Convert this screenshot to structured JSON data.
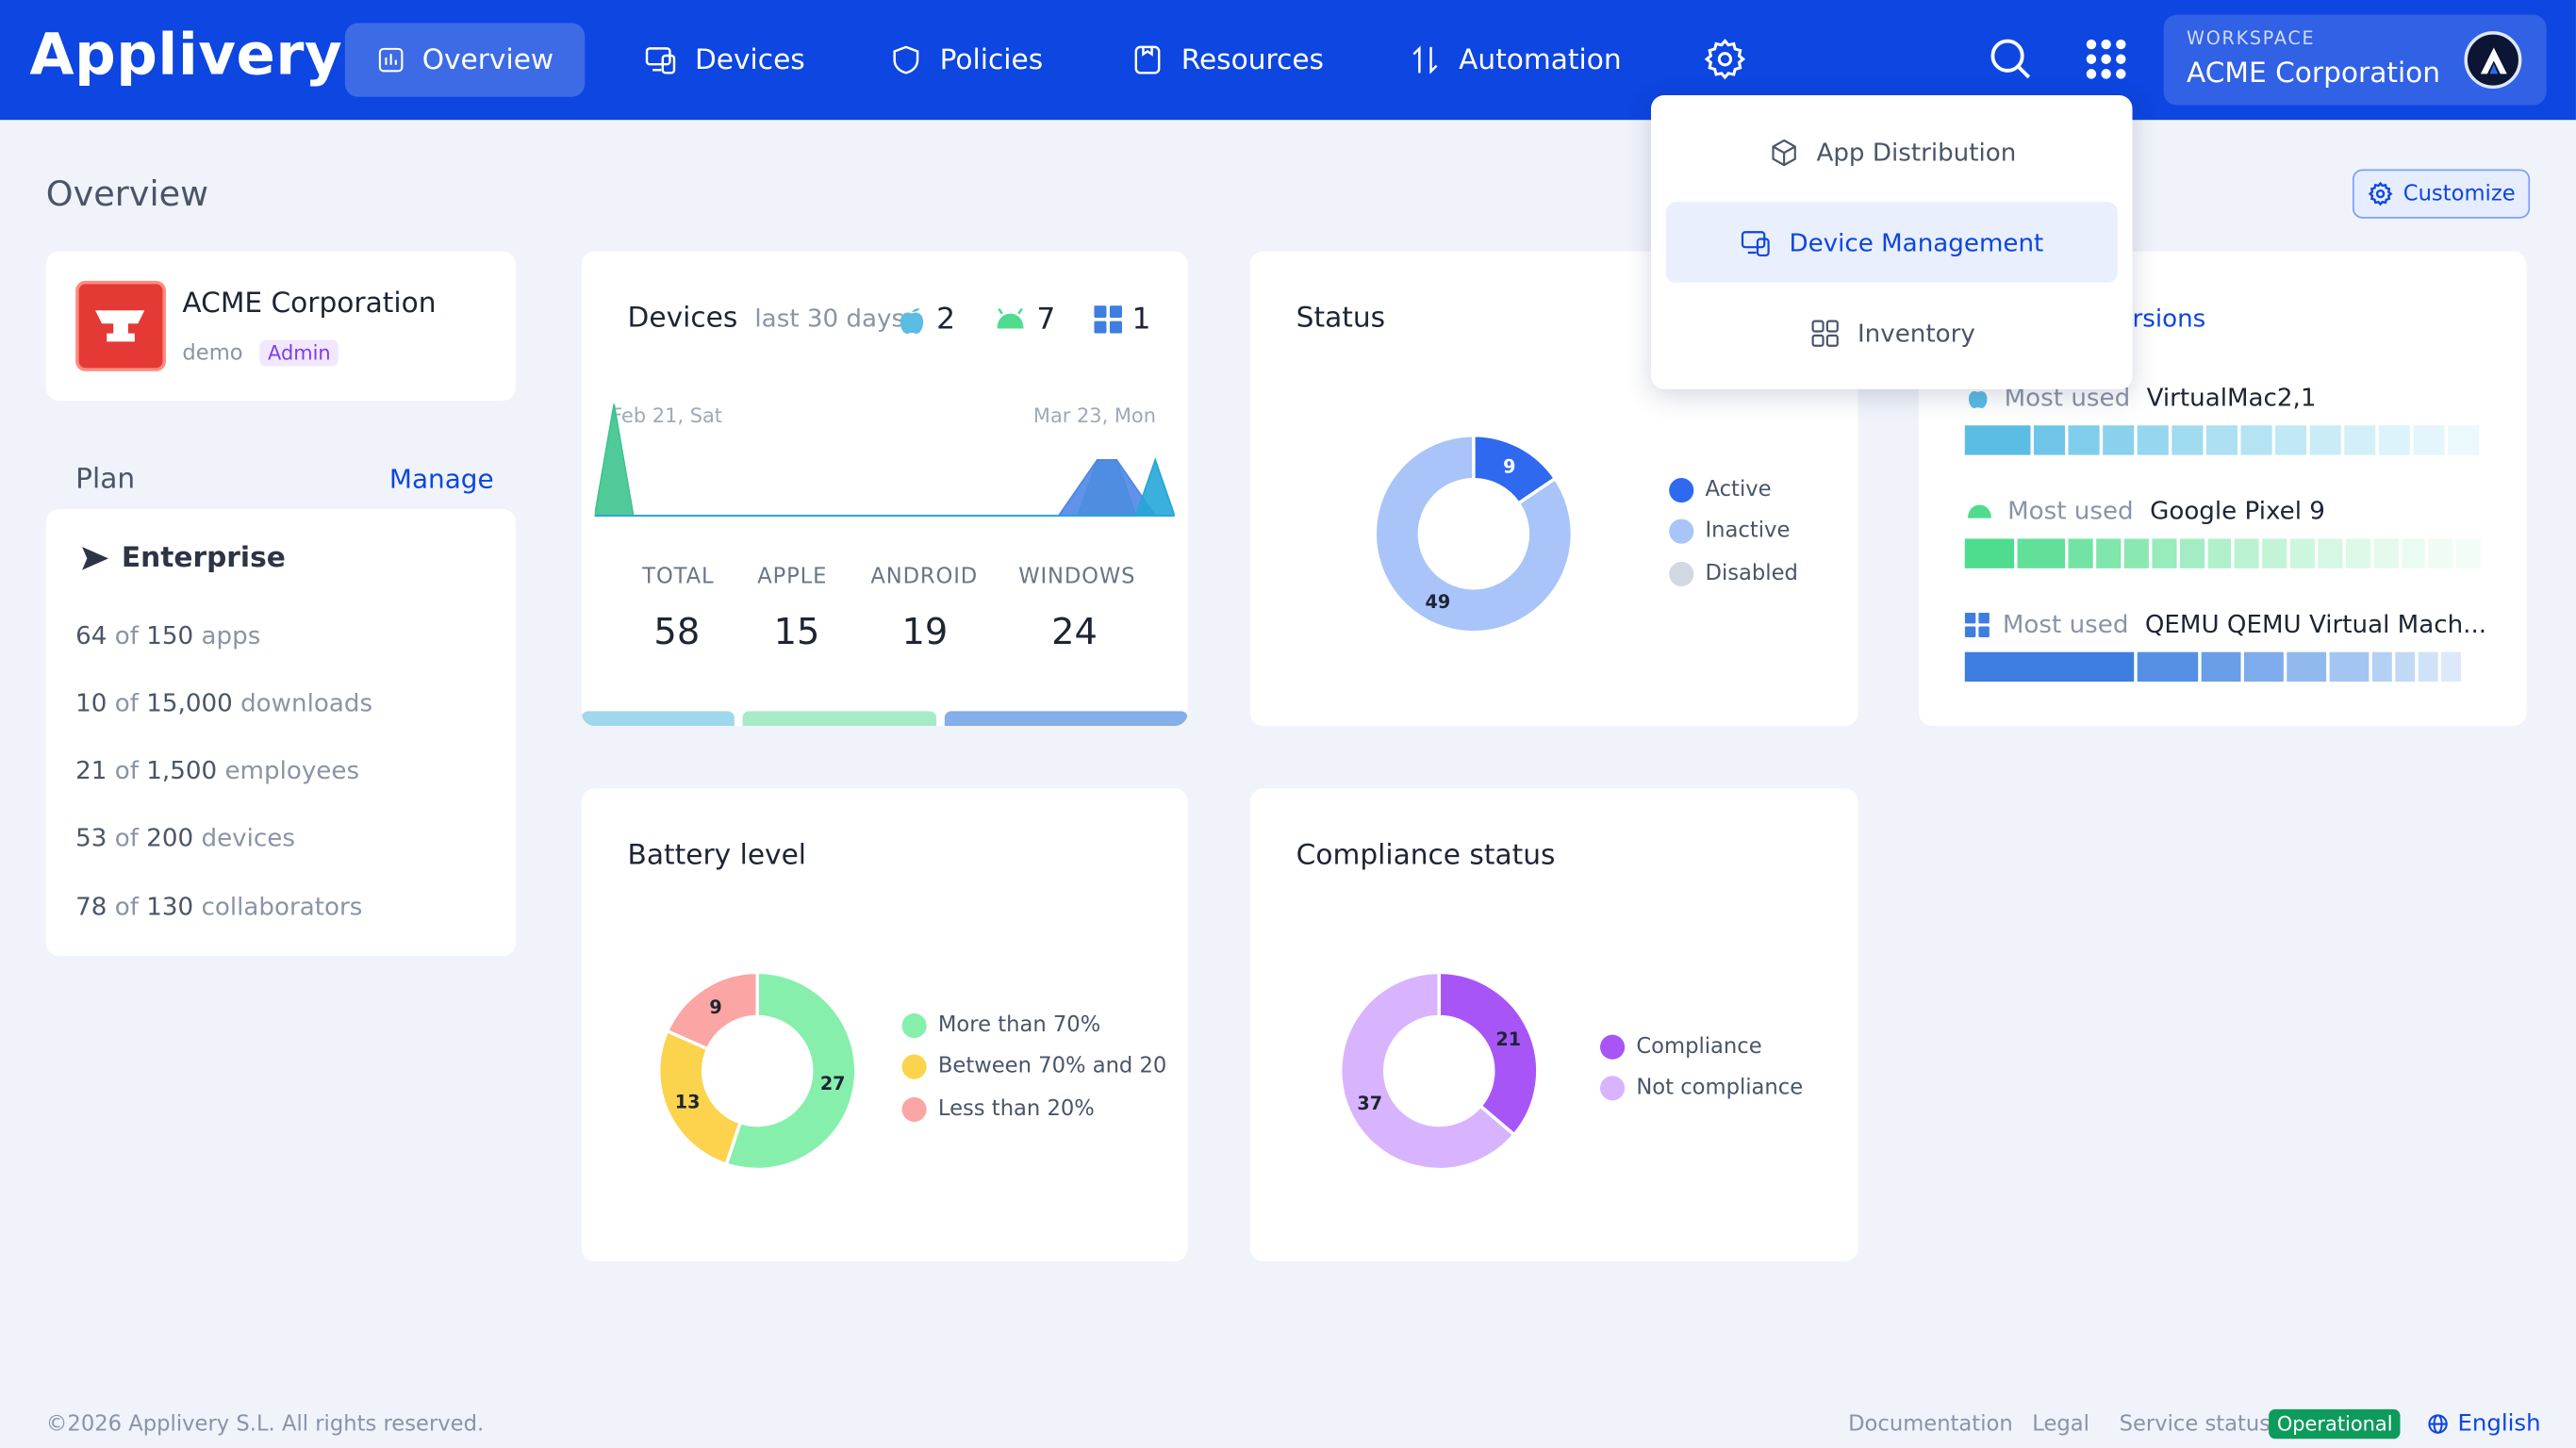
{
  "app": {
    "logo_text": "Applivery"
  },
  "nav": {
    "overview": "Overview",
    "devices": "Devices",
    "policies": "Policies",
    "resources": "Resources",
    "automation": "Automation"
  },
  "workspace": {
    "label": "WORKSPACE",
    "name": "ACME Corporation",
    "avatar_letter": "A"
  },
  "page": {
    "title": "Overview",
    "customize_label": "Customize"
  },
  "company": {
    "name": "ACME Corporation",
    "env": "demo",
    "role": "Admin"
  },
  "plan": {
    "heading": "Plan",
    "manage_label": "Manage",
    "name": "Enterprise",
    "limits": [
      {
        "used": "64",
        "of": "of",
        "total": "150",
        "unit": "apps"
      },
      {
        "used": "10",
        "of": "of",
        "total": "15,000",
        "unit": "downloads"
      },
      {
        "used": "21",
        "of": "of",
        "total": "1,500",
        "unit": "employees"
      },
      {
        "used": "53",
        "of": "of",
        "total": "200",
        "unit": "devices"
      },
      {
        "used": "78",
        "of": "of",
        "total": "130",
        "unit": "collaborators"
      }
    ]
  },
  "devices_card": {
    "title": "Devices",
    "period": "last 30 days",
    "apple_count": "2",
    "android_count": "7",
    "windows_count": "1",
    "axis_start": "Feb 21, Sat",
    "axis_end": "Mar 23, Mon",
    "stats": [
      {
        "label": "TOTAL",
        "value": "58"
      },
      {
        "label": "APPLE",
        "value": "15"
      },
      {
        "label": "ANDROID",
        "value": "19"
      },
      {
        "label": "WINDOWS",
        "value": "24"
      }
    ],
    "colors": {
      "apple": "#9fd7ef",
      "android": "#a6ebc6",
      "windows": "#86aee8"
    }
  },
  "status_card": {
    "title": "Status",
    "legend": [
      {
        "label": "Active",
        "color": "#2e69f0"
      },
      {
        "label": "Inactive",
        "color": "#a9c4f8"
      },
      {
        "label": "Disabled",
        "color": "#d2d8e2"
      }
    ]
  },
  "os_card": {
    "title_partial": "rsions",
    "rows": [
      {
        "prefix": "Most used",
        "model": "VirtualMac2,1",
        "icon": "apple-icon",
        "color": "#5bbce4"
      },
      {
        "prefix": "Most used",
        "model": "Google Pixel 9",
        "icon": "android-icon",
        "color": "#4fdc8e"
      },
      {
        "prefix": "Most used",
        "model": "QEMU QEMU Virtual Mach...",
        "icon": "windows-icon",
        "color": "#3d7ee0"
      }
    ]
  },
  "battery_card": {
    "title": "Battery level",
    "legend": [
      {
        "label": "More than 70%",
        "color": "#86efac"
      },
      {
        "label": "Between 70% and 20",
        "color": "#fcd34d"
      },
      {
        "label": "Less than 20%",
        "color": "#fca5a5"
      }
    ]
  },
  "compliance_card": {
    "title": "Compliance status",
    "legend": [
      {
        "label": "Compliance",
        "color": "#a855f7"
      },
      {
        "label": "Not compliance",
        "color": "#d8b4fe"
      }
    ]
  },
  "settings_menu": {
    "items": [
      "App Distribution",
      "Device Management",
      "Inventory"
    ],
    "selected": "Device Management"
  },
  "footer": {
    "copyright": "©2026 Applivery S.L. All rights reserved.",
    "documentation": "Documentation",
    "legal": "Legal",
    "service_status": "Service status",
    "status_value": "Operational",
    "language": "English"
  },
  "chart_data": [
    {
      "type": "area",
      "title": "Devices",
      "x_range": [
        "Feb 21, Sat",
        "Mar 23, Mon"
      ],
      "series": [
        {
          "name": "Android",
          "values": [
            0,
            4,
            0,
            0,
            0,
            0,
            0,
            0,
            0,
            0,
            0,
            0,
            0,
            0,
            0,
            0,
            0,
            0,
            0,
            0,
            0,
            0,
            0,
            0,
            0,
            0,
            2,
            2,
            0,
            0,
            0
          ]
        },
        {
          "name": "Windows",
          "values": [
            0,
            0,
            0,
            0,
            0,
            0,
            0,
            0,
            0,
            0,
            0,
            0,
            0,
            0,
            0,
            0,
            0,
            0,
            0,
            0,
            0,
            0,
            0,
            0,
            0,
            1,
            2,
            2,
            1,
            0,
            0
          ]
        },
        {
          "name": "Apple",
          "values": [
            0,
            0,
            0,
            0,
            0,
            0,
            0,
            0,
            0,
            0,
            0,
            0,
            0,
            0,
            0,
            0,
            0,
            0,
            0,
            0,
            0,
            0,
            0,
            0,
            0,
            0,
            0,
            0,
            0,
            2,
            0
          ]
        }
      ]
    },
    {
      "type": "pie",
      "title": "Status",
      "categories": [
        "Active",
        "Inactive",
        "Disabled"
      ],
      "values": [
        9,
        49,
        0
      ],
      "colors": [
        "#2e69f0",
        "#a9c4f8",
        "#d2d8e2"
      ]
    },
    {
      "type": "pie",
      "title": "Battery level",
      "categories": [
        "More than 70%",
        "Between 70% and 20",
        "Less than 20%"
      ],
      "values": [
        27,
        13,
        9
      ],
      "colors": [
        "#86efac",
        "#fcd34d",
        "#fca5a5"
      ]
    },
    {
      "type": "pie",
      "title": "Compliance status",
      "categories": [
        "Compliance",
        "Not compliance"
      ],
      "values": [
        21,
        37
      ],
      "colors": [
        "#a855f7",
        "#d8b4fe"
      ]
    }
  ]
}
